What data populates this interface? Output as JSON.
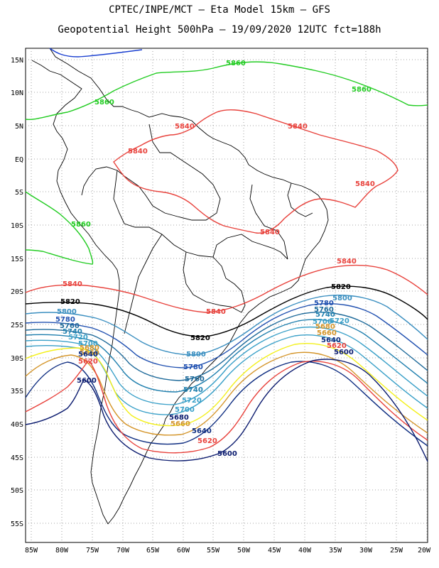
{
  "header": {
    "line1": "CPTEC/INPE/MCT –  Eta Model 15km – GFS",
    "line2": "Geopotential Height 500hPa – 19/09/2020 12UTC fct=188h"
  },
  "axes": {
    "lat_labels": [
      "15N",
      "10N",
      "5N",
      "EQ",
      "5S",
      "10S",
      "15S",
      "20S",
      "25S",
      "30S",
      "35S",
      "40S",
      "45S",
      "50S",
      "55S"
    ],
    "lon_labels": [
      "85W",
      "80W",
      "75W",
      "70W",
      "65W",
      "60W",
      "55W",
      "50W",
      "45W",
      "40W",
      "35W",
      "30W",
      "25W",
      "20W"
    ]
  },
  "colors": {
    "c5600": "#0a1a6e",
    "c5620": "#e8423c",
    "c5640": "#0d2c80",
    "c5660": "#d4952a",
    "c5680": "#f3f01a",
    "c5700": "#3aa0c8",
    "c5720": "#3aa0c8",
    "c5740": "#1f7fae",
    "c5760": "#1e6a9a",
    "c5780": "#2050b0",
    "c5800": "#3b8fc0",
    "c5820": "#000000",
    "c5840": "#e8423c",
    "c5860": "#22cc22",
    "c5880": "#1a3fd0"
  },
  "contour_labels": [
    {
      "text": "5860"
    },
    {
      "text": "5860"
    },
    {
      "text": "5860"
    },
    {
      "text": "5860"
    },
    {
      "text": "5840"
    },
    {
      "text": "5840"
    },
    {
      "text": "5840"
    },
    {
      "text": "5840"
    },
    {
      "text": "5840"
    },
    {
      "text": "5840"
    },
    {
      "text": "5840"
    },
    {
      "text": "5840"
    },
    {
      "text": "5820"
    },
    {
      "text": "5820"
    },
    {
      "text": "5820"
    },
    {
      "text": "5800"
    },
    {
      "text": "5800"
    },
    {
      "text": "5800"
    },
    {
      "text": "5780"
    },
    {
      "text": "5780"
    },
    {
      "text": "5780"
    },
    {
      "text": "5760"
    },
    {
      "text": "5760"
    },
    {
      "text": "5760"
    },
    {
      "text": "5740"
    },
    {
      "text": "5740"
    },
    {
      "text": "5740"
    },
    {
      "text": "5720"
    },
    {
      "text": "5720"
    },
    {
      "text": "5720"
    },
    {
      "text": "5700"
    },
    {
      "text": "5700"
    },
    {
      "text": "5700"
    },
    {
      "text": "5680"
    },
    {
      "text": "5680"
    },
    {
      "text": "5680"
    },
    {
      "text": "5660"
    },
    {
      "text": "5660"
    },
    {
      "text": "5660"
    },
    {
      "text": "5640"
    },
    {
      "text": "5640"
    },
    {
      "text": "5640"
    },
    {
      "text": "5620"
    },
    {
      "text": "5620"
    },
    {
      "text": "5620"
    },
    {
      "text": "5600"
    },
    {
      "text": "5600"
    },
    {
      "text": "5600"
    }
  ]
}
